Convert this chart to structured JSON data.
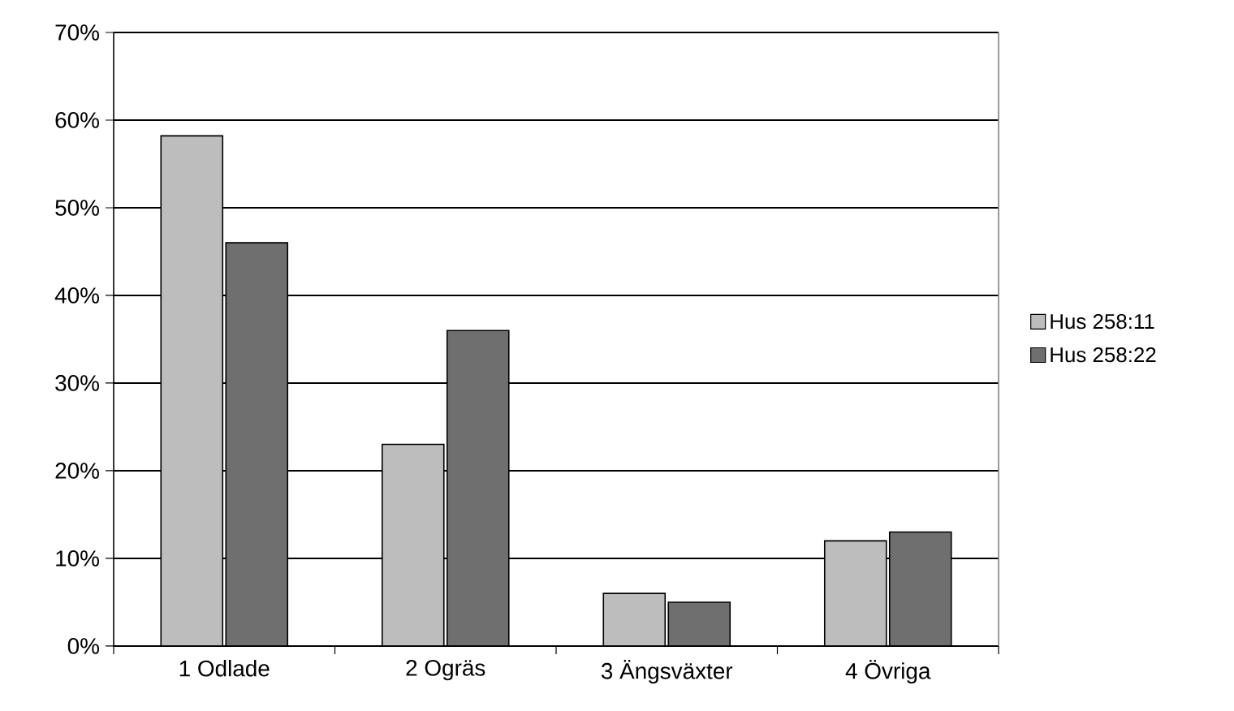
{
  "chart_data": {
    "type": "bar",
    "categories": [
      "1 Odlade",
      "2 Ogräs",
      "3 Ängsväxter",
      "4 Övriga"
    ],
    "series": [
      {
        "name": "Hus 258:11",
        "color": "#bcbdbc",
        "values": [
          58.2,
          23,
          6,
          12
        ]
      },
      {
        "name": "Hus 258:22",
        "color": "#6f6f6f",
        "values": [
          46,
          36,
          5,
          13
        ]
      }
    ],
    "ylim": [
      0,
      70
    ],
    "yticks": [
      {
        "value": 0,
        "label": "0%"
      },
      {
        "value": 10,
        "label": "10%"
      },
      {
        "value": 20,
        "label": "20%"
      },
      {
        "value": 30,
        "label": "30%"
      },
      {
        "value": 40,
        "label": "40%"
      },
      {
        "value": 50,
        "label": "50%"
      },
      {
        "value": 60,
        "label": "60%"
      },
      {
        "value": 70,
        "label": "70%"
      }
    ],
    "grid": "y",
    "legend": "right"
  }
}
